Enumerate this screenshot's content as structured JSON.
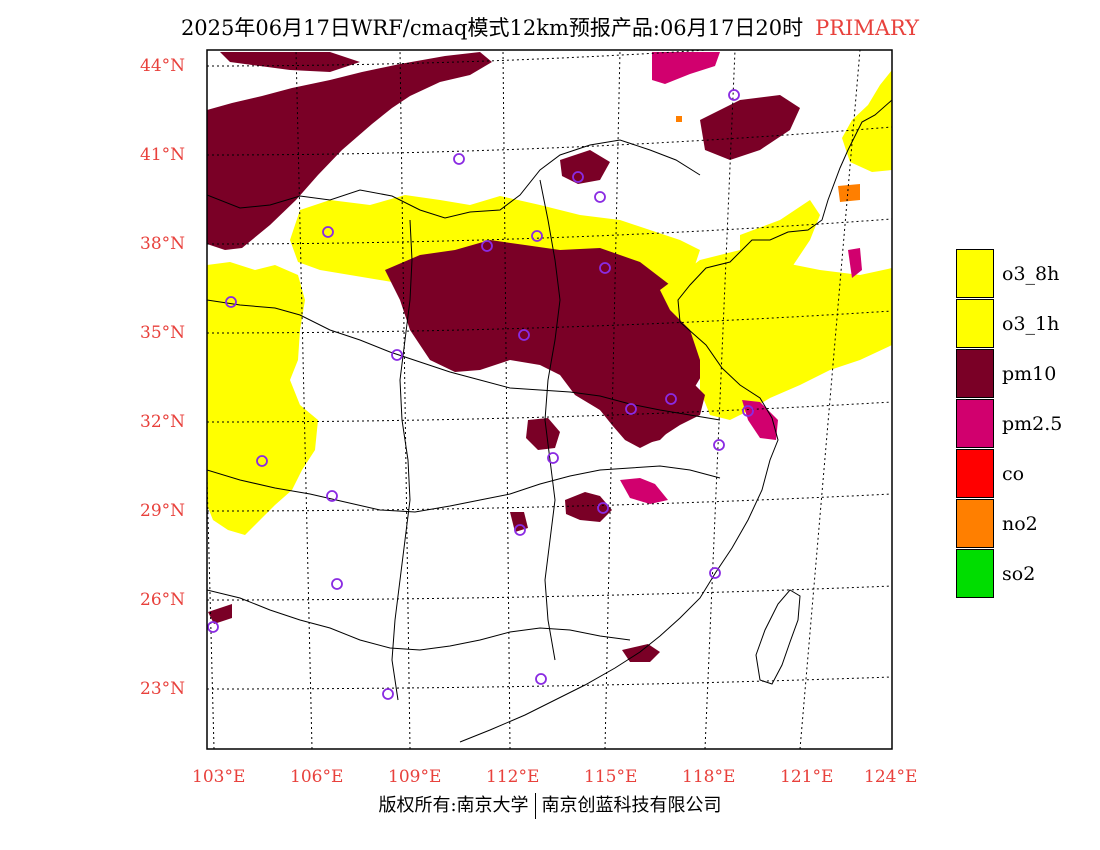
{
  "title": {
    "main": "2025年06月17日WRF/cmaq模式12km预报产品:06月17日20时",
    "tag": "PRIMARY"
  },
  "axes": {
    "lon_labels": [
      "103°E",
      "106°E",
      "109°E",
      "112°E",
      "115°E",
      "118°E",
      "121°E",
      "124°E"
    ],
    "lat_labels": [
      "44°N",
      "41°N",
      "38°N",
      "35°N",
      "32°N",
      "29°N",
      "26°N",
      "23°N"
    ]
  },
  "legend": {
    "items": [
      {
        "label": "o3_8h",
        "color": "#ffff00"
      },
      {
        "label": "o3_1h",
        "color": "#ffff00"
      },
      {
        "label": "pm10",
        "color": "#7a0026"
      },
      {
        "label": "pm2.5",
        "color": "#d1006e"
      },
      {
        "label": "co",
        "color": "#ff0000"
      },
      {
        "label": "no2",
        "color": "#ff7f00"
      },
      {
        "label": "so2",
        "color": "#00dd00"
      }
    ]
  },
  "footer": {
    "left": "版权所有:南京大学",
    "right": "南京创蓝科技有限公司"
  },
  "colors": {
    "o3": "#ffff00",
    "pm10": "#7a0026",
    "pm25": "#d1006e",
    "no2": "#ff7f00",
    "station": "#8a2be2",
    "axis_text": "#e8413c"
  }
}
